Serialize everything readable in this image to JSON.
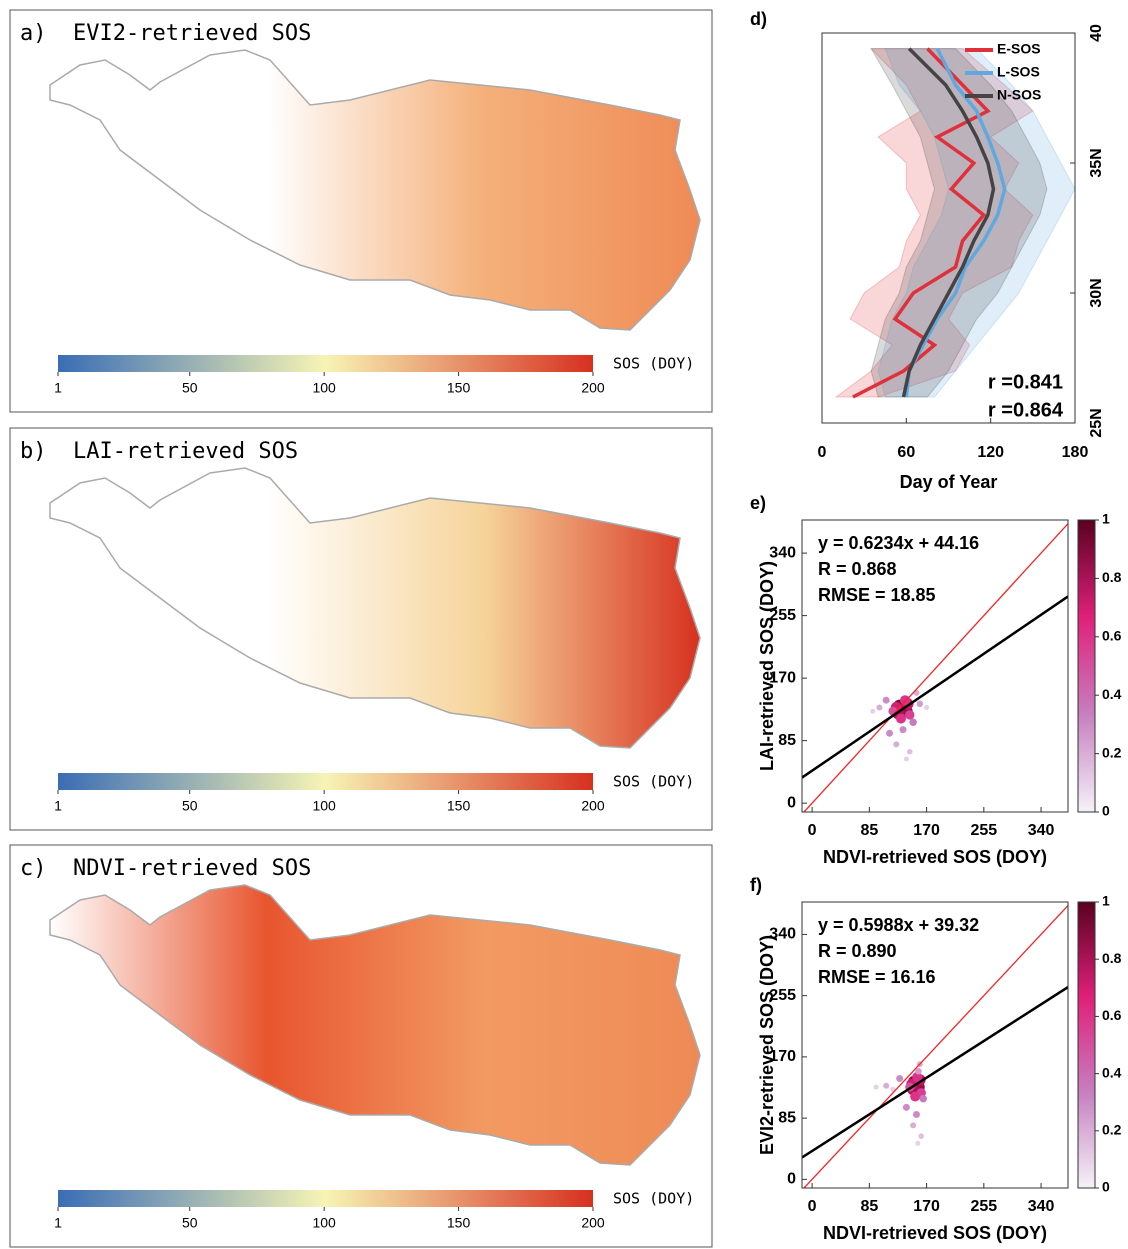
{
  "chart_data": [
    {
      "type": "map",
      "panels": [
        {
          "title": "a)  EVI2-retrieved SOS",
          "fill": [
            "#ffffff",
            "#ffffff",
            "#f4b07a",
            "#ef8a55"
          ]
        },
        {
          "title": "b)  LAI-retrieved SOS",
          "fill": [
            "#ffffff",
            "#ffffff",
            "#f6d49a",
            "#d7301f"
          ]
        },
        {
          "title": "c)  NDVI-retrieved SOS",
          "fill": [
            "#ffffff",
            "#e8552f",
            "#f29a62",
            "#ef8a55"
          ]
        }
      ],
      "colorbar": {
        "label": "SOS (DOY)",
        "lim": [
          1,
          200
        ],
        "ticks": [
          1,
          50,
          100,
          150,
          200
        ],
        "colors": [
          "#3a6db5",
          "#f7f4b4",
          "#d7301f"
        ]
      }
    },
    {
      "type": "line",
      "title": "d)",
      "xlabel": "Day of Year",
      "xlim": [
        0,
        180
      ],
      "xticks": [
        0,
        60,
        120,
        180
      ],
      "ylim": [
        25,
        40
      ],
      "yticks": [
        {
          "value": 25,
          "label": "25N"
        },
        {
          "value": 30,
          "label": "30N"
        },
        {
          "value": 35,
          "label": "35N"
        },
        40
      ],
      "y": [
        26,
        27,
        28,
        29,
        30,
        31,
        32,
        33,
        34,
        35,
        36,
        37,
        38,
        39.4
      ],
      "legend": "upper right",
      "series": [
        {
          "name": "E-SOS",
          "color": "#e0303a",
          "values": [
            22,
            58,
            80,
            52,
            65,
            95,
            100,
            115,
            92,
            108,
            82,
            118,
            100,
            75
          ],
          "lower": [
            10,
            35,
            50,
            20,
            30,
            55,
            60,
            70,
            60,
            60,
            40,
            70,
            60,
            35
          ],
          "upper": [
            40,
            95,
            105,
            90,
            100,
            135,
            140,
            150,
            130,
            140,
            120,
            150,
            130,
            100
          ]
        },
        {
          "name": "L-SOS",
          "color": "#5fa8e0",
          "values": [
            60,
            62,
            72,
            82,
            95,
            102,
            115,
            125,
            130,
            125,
            118,
            110,
            95,
            82
          ],
          "lower": [
            45,
            40,
            45,
            50,
            60,
            65,
            75,
            85,
            90,
            85,
            80,
            70,
            55,
            45
          ],
          "upper": [
            80,
            95,
            110,
            125,
            140,
            150,
            160,
            170,
            180,
            170,
            160,
            150,
            135,
            110
          ]
        },
        {
          "name": "N-SOS",
          "color": "#444444",
          "values": [
            58,
            62,
            70,
            80,
            90,
            100,
            108,
            118,
            122,
            118,
            110,
            100,
            88,
            62
          ],
          "lower": [
            40,
            35,
            40,
            45,
            55,
            60,
            70,
            75,
            80,
            75,
            70,
            60,
            50,
            35
          ],
          "upper": [
            75,
            90,
            100,
            110,
            125,
            135,
            145,
            155,
            160,
            155,
            145,
            135,
            120,
            95
          ]
        }
      ],
      "annotations": [
        {
          "text": "r =0.841",
          "color": "#5fa8e0"
        },
        {
          "text": "r =0.864",
          "color": "#e0303a"
        }
      ]
    },
    {
      "type": "scatter",
      "title": "e)",
      "xlabel": "NDVI-retrieved SOS (DOY)",
      "ylabel": "LAI-retrieved SOS (DOY)",
      "xlim": [
        -15,
        380
      ],
      "ylim": [
        -12,
        385
      ],
      "xticks": [
        0,
        85,
        170,
        255,
        340
      ],
      "yticks": [
        0,
        85,
        170,
        255,
        340
      ],
      "annotations": [
        "y = 0.6234x + 44.16",
        "R = 0.868",
        "RMSE = 18.85"
      ],
      "fit": {
        "slope": 0.6234,
        "intercept": 44.16,
        "color": "#000000"
      },
      "identity_color": "#ff2020",
      "x": [
        135,
        130,
        140,
        128,
        142,
        125,
        138,
        145,
        120,
        132,
        110,
        150,
        100,
        160,
        115,
        155,
        135,
        125,
        145,
        90,
        170,
        140
      ],
      "y": [
        128,
        132,
        125,
        122,
        135,
        130,
        140,
        120,
        125,
        115,
        140,
        110,
        130,
        135,
        95,
        150,
        100,
        80,
        70,
        125,
        130,
        60
      ],
      "density": [
        1,
        0.9,
        0.85,
        0.8,
        0.75,
        0.7,
        0.6,
        0.55,
        0.5,
        0.6,
        0.3,
        0.35,
        0.2,
        0.25,
        0.3,
        0.2,
        0.3,
        0.2,
        0.15,
        0.1,
        0.1,
        0.1
      ],
      "colorbar": {
        "lim": [
          0,
          1
        ],
        "ticks": [
          0,
          0.2,
          0.4,
          0.6,
          0.8,
          1
        ],
        "colors": [
          "#f4f2f8",
          "#c77fc0",
          "#e0207a",
          "#5a0020"
        ]
      }
    },
    {
      "type": "scatter",
      "title": "f)",
      "xlabel": "NDVI-retrieved SOS (DOY)",
      "ylabel": "EVI2-retrieved SOS (DOY)",
      "xlim": [
        -15,
        380
      ],
      "ylim": [
        -12,
        385
      ],
      "xticks": [
        0,
        85,
        170,
        255,
        340
      ],
      "yticks": [
        0,
        85,
        170,
        255,
        340
      ],
      "annotations": [
        "y = 0.5988x + 39.32",
        "R = 0.890",
        "RMSE = 16.16"
      ],
      "fit": {
        "slope": 0.5988,
        "intercept": 39.32,
        "color": "#000000"
      },
      "identity_color": "#ff2020",
      "x": [
        155,
        152,
        158,
        150,
        160,
        148,
        156,
        162,
        145,
        153,
        130,
        165,
        110,
        158,
        140,
        160,
        155,
        150,
        162,
        95,
        120,
        157
      ],
      "y": [
        130,
        135,
        128,
        125,
        138,
        132,
        142,
        120,
        128,
        115,
        140,
        112,
        130,
        150,
        100,
        160,
        90,
        75,
        60,
        128,
        125,
        50
      ],
      "density": [
        1,
        0.9,
        0.85,
        0.8,
        0.75,
        0.7,
        0.6,
        0.55,
        0.5,
        0.6,
        0.3,
        0.35,
        0.2,
        0.25,
        0.3,
        0.2,
        0.3,
        0.2,
        0.15,
        0.1,
        0.1,
        0.1
      ],
      "colorbar": {
        "lim": [
          0,
          1
        ],
        "ticks": [
          0,
          0.2,
          0.4,
          0.6,
          0.8,
          1
        ],
        "colors": [
          "#f4f2f8",
          "#c77fc0",
          "#e0207a",
          "#5a0020"
        ]
      }
    }
  ]
}
